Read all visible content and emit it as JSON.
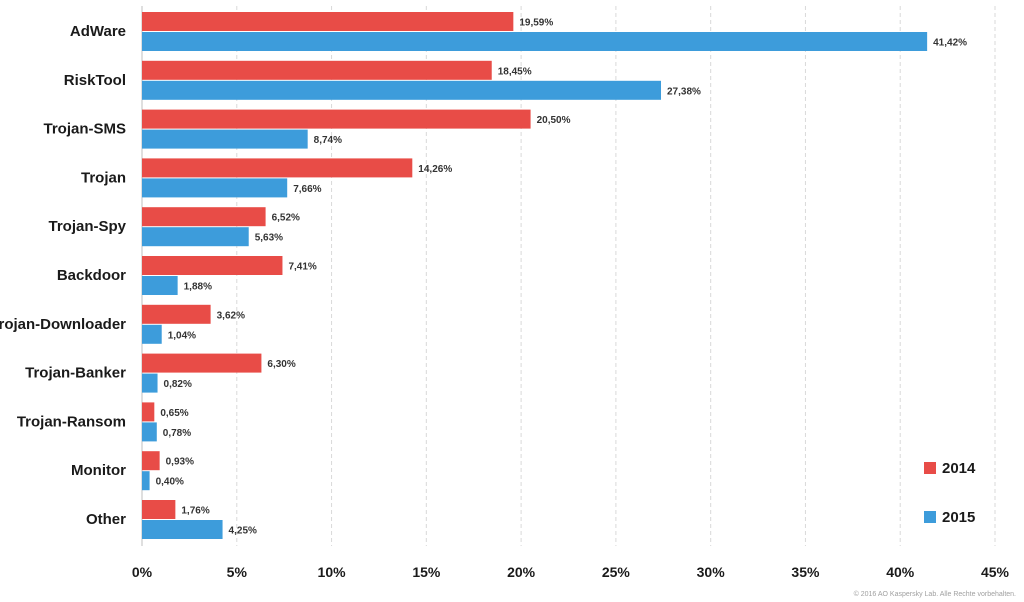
{
  "chart_data": {
    "type": "bar",
    "orientation": "horizontal",
    "categories": [
      "AdWare",
      "RiskTool",
      "Trojan-SMS",
      "Trojan",
      "Trojan-Spy",
      "Backdoor",
      "Trojan-Downloader",
      "Trojan-Banker",
      "Trojan-Ransom",
      "Monitor",
      "Other"
    ],
    "series": [
      {
        "name": "2014",
        "color": "#e84c47",
        "values": [
          19.59,
          18.45,
          20.5,
          14.26,
          6.52,
          7.41,
          3.62,
          6.3,
          0.65,
          0.93,
          1.76
        ],
        "labels": [
          "19,59%",
          "18,45%",
          "20,50%",
          "14,26%",
          "6,52%",
          "7,41%",
          "3,62%",
          "6,30%",
          "0,65%",
          "0,93%",
          "1,76%"
        ]
      },
      {
        "name": "2015",
        "color": "#3d9cdb",
        "values": [
          41.42,
          27.38,
          8.74,
          7.66,
          5.63,
          1.88,
          1.04,
          0.82,
          0.78,
          0.4,
          4.25
        ],
        "labels": [
          "41,42%",
          "27,38%",
          "8,74%",
          "7,66%",
          "5,63%",
          "1,88%",
          "1,04%",
          "0,82%",
          "0,78%",
          "0,40%",
          "4,25%"
        ]
      }
    ],
    "xlim": [
      0,
      45
    ],
    "xticks": [
      0,
      5,
      10,
      15,
      20,
      25,
      30,
      35,
      40,
      45
    ],
    "xtick_labels": [
      "0%",
      "5%",
      "10%",
      "15%",
      "20%",
      "25%",
      "30%",
      "35%",
      "40%",
      "45%"
    ],
    "grid": "vertical-dashed",
    "legend_position": "bottom-right",
    "title": "",
    "xlabel": "",
    "ylabel": ""
  },
  "copyright": "© 2016 AO Kaspersky Lab. Alle Rechte vorbehalten."
}
